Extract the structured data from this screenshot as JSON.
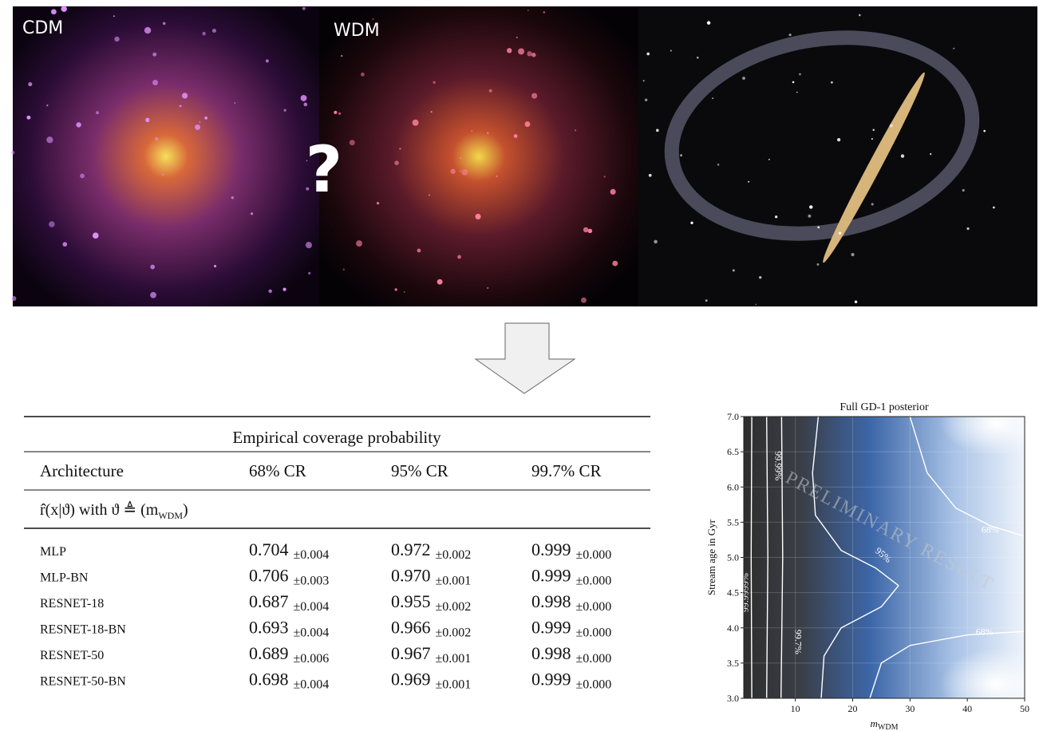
{
  "images": {
    "left_label": "CDM",
    "middle_label": "WDM",
    "question": "?"
  },
  "table": {
    "title": "Empirical coverage probability",
    "header": [
      "Architecture",
      "68% CR",
      "95% CR",
      "99.7% CR"
    ],
    "subheader": {
      "text": "r̂(x|ϑ) with ϑ ≜ (m",
      "sub": "WDM",
      "close": ")"
    },
    "rows": [
      {
        "name": "MLP",
        "cells": [
          [
            "0.704",
            "±0.004"
          ],
          [
            "0.972",
            "±0.002"
          ],
          [
            "0.999",
            "±0.000"
          ]
        ]
      },
      {
        "name": "MLP-BN",
        "cells": [
          [
            "0.706",
            "±0.003"
          ],
          [
            "0.970",
            "±0.001"
          ],
          [
            "0.999",
            "±0.000"
          ]
        ]
      },
      {
        "name": "RESNET-18",
        "cells": [
          [
            "0.687",
            "±0.004"
          ],
          [
            "0.955",
            "±0.002"
          ],
          [
            "0.998",
            "±0.000"
          ]
        ]
      },
      {
        "name": "RESNET-18-BN",
        "cells": [
          [
            "0.693",
            "±0.004"
          ],
          [
            "0.966",
            "±0.002"
          ],
          [
            "0.999",
            "±0.000"
          ]
        ]
      },
      {
        "name": "RESNET-50",
        "cells": [
          [
            "0.689",
            "±0.006"
          ],
          [
            "0.967",
            "±0.001"
          ],
          [
            "0.998",
            "±0.000"
          ]
        ]
      },
      {
        "name": "RESNET-50-BN",
        "cells": [
          [
            "0.698",
            "±0.004"
          ],
          [
            "0.969",
            "±0.001"
          ],
          [
            "0.999",
            "±0.000"
          ]
        ]
      }
    ]
  },
  "plot": {
    "title": "Full GD-1 posterior",
    "xlabel": "m",
    "xlabel_sub": "WDM",
    "ylabel": "Stream age in Gyr",
    "xlim": [
      1,
      50
    ],
    "ylim": [
      3,
      7
    ],
    "xticks": [
      10,
      20,
      30,
      40,
      50
    ],
    "yticks": [
      {
        "value": 3,
        "label": "3.0"
      },
      3.5,
      {
        "value": 4,
        "label": "4.0"
      },
      4.5,
      {
        "value": 5,
        "label": "5.0"
      },
      5.5,
      {
        "value": 6,
        "label": "6.0"
      },
      6.5,
      {
        "value": 7,
        "label": "7.0"
      }
    ],
    "watermark": "PRELIMINARY RESULT",
    "contour_labels": [
      "68%",
      "68%",
      "95%",
      "99.7%",
      "99.99%",
      "99.9999%"
    ]
  }
}
